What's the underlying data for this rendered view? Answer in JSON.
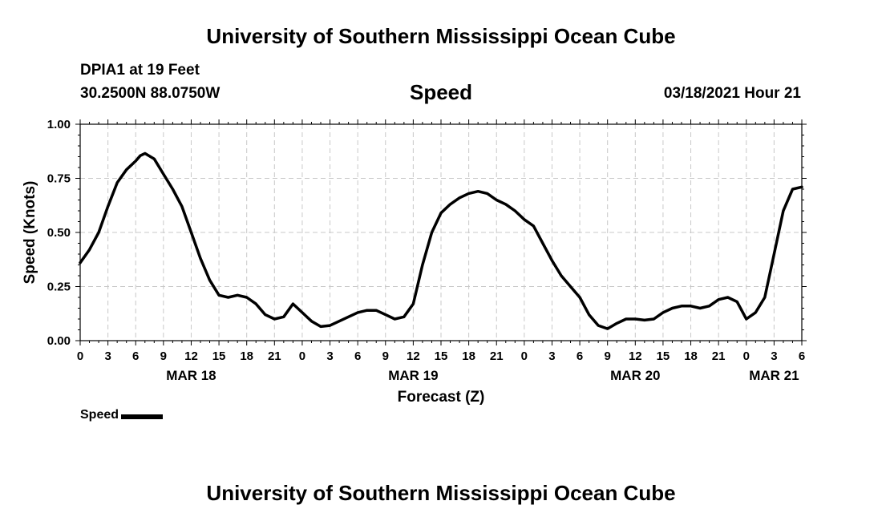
{
  "header": {
    "title": "University of Southern Mississippi Ocean Cube",
    "station": "DPIA1 at 19 Feet",
    "coords": "30.2500N 88.0750W",
    "chart_title": "Speed",
    "datetime": "03/18/2021 Hour 21"
  },
  "footer": {
    "title": "University of Southern Mississippi Ocean Cube"
  },
  "legend": {
    "label": "Speed"
  },
  "chart_data": {
    "type": "line",
    "title": "Speed",
    "xlabel": "Forecast (Z)",
    "ylabel": "Speed (Knots)",
    "xlim": [
      0,
      78
    ],
    "ylim": [
      0,
      1
    ],
    "grid": true,
    "legend_position": "bottom-left",
    "y_ticks": [
      0,
      0.25,
      0.5,
      0.75,
      1.0
    ],
    "y_tick_labels": [
      "0.00",
      "0.25",
      "0.50",
      "0.75",
      "1.00"
    ],
    "x_tick_labels": [
      "0",
      "3",
      "6",
      "9",
      "12",
      "15",
      "18",
      "21",
      "0",
      "3",
      "6",
      "9",
      "12",
      "15",
      "18",
      "21",
      "0",
      "3",
      "6",
      "9",
      "12",
      "15",
      "18",
      "21",
      "0",
      "3",
      "6"
    ],
    "day_labels": [
      {
        "label": "MAR 18",
        "hour": 12
      },
      {
        "label": "MAR 19",
        "hour": 36
      },
      {
        "label": "MAR 20",
        "hour": 60
      },
      {
        "label": "MAR 21",
        "hour": 75
      }
    ],
    "series": [
      {
        "name": "Speed",
        "color": "#000000",
        "x": [
          0,
          1,
          2,
          3,
          4,
          5,
          6,
          6.5,
          7,
          8,
          9,
          10,
          11,
          12,
          13,
          14,
          15,
          16,
          17,
          18,
          19,
          20,
          21,
          22,
          23,
          24,
          25,
          26,
          27,
          28,
          29,
          30,
          31,
          32,
          33,
          34,
          35,
          36,
          37,
          38,
          39,
          40,
          41,
          42,
          43,
          44,
          45,
          46,
          47,
          48,
          49,
          50,
          51,
          52,
          53,
          54,
          55,
          56,
          57,
          58,
          59,
          60,
          61,
          62,
          63,
          64,
          65,
          66,
          67,
          68,
          69,
          70,
          71,
          72,
          73,
          74,
          75,
          76,
          77,
          78
        ],
        "values": [
          0.36,
          0.42,
          0.5,
          0.62,
          0.73,
          0.79,
          0.83,
          0.855,
          0.865,
          0.84,
          0.77,
          0.7,
          0.62,
          0.5,
          0.38,
          0.28,
          0.21,
          0.2,
          0.21,
          0.2,
          0.17,
          0.12,
          0.1,
          0.11,
          0.17,
          0.13,
          0.09,
          0.065,
          0.07,
          0.09,
          0.11,
          0.13,
          0.14,
          0.14,
          0.12,
          0.1,
          0.11,
          0.17,
          0.35,
          0.5,
          0.59,
          0.63,
          0.66,
          0.68,
          0.69,
          0.68,
          0.65,
          0.63,
          0.6,
          0.56,
          0.53,
          0.45,
          0.37,
          0.3,
          0.25,
          0.2,
          0.12,
          0.07,
          0.055,
          0.08,
          0.1,
          0.1,
          0.095,
          0.1,
          0.13,
          0.15,
          0.16,
          0.16,
          0.15,
          0.16,
          0.19,
          0.2,
          0.18,
          0.1,
          0.13,
          0.2,
          0.4,
          0.6,
          0.7,
          0.71
        ]
      }
    ]
  }
}
